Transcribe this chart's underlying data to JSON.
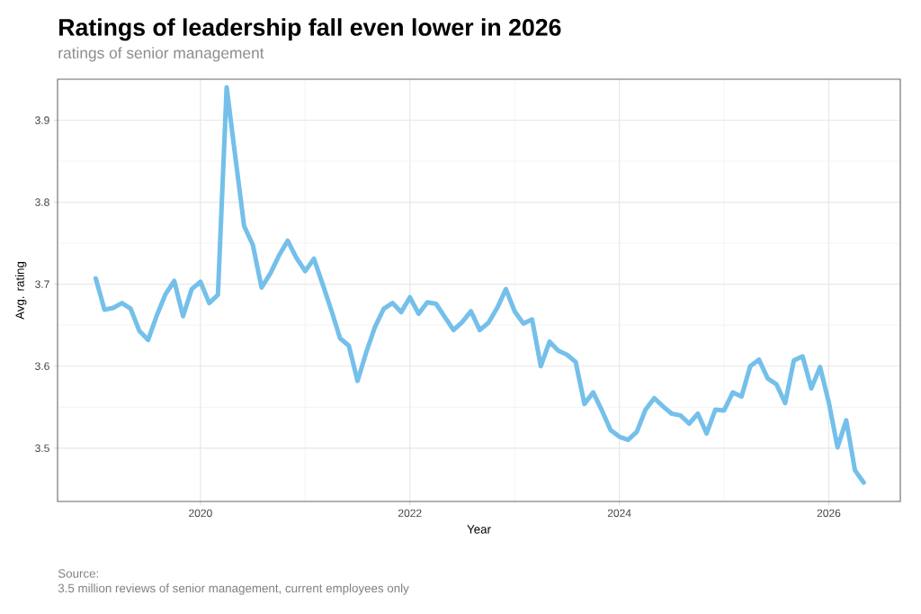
{
  "chart_data": {
    "type": "line",
    "title": "Ratings of leadership fall even lower in 2026",
    "subtitle": "ratings of senior management",
    "xlabel": "Year",
    "ylabel": "Avg. rating",
    "x": [
      "2019-01",
      "2019-02",
      "2019-03",
      "2019-04",
      "2019-05",
      "2019-06",
      "2019-07",
      "2019-08",
      "2019-09",
      "2019-10",
      "2019-11",
      "2019-12",
      "2020-01",
      "2020-02",
      "2020-03",
      "2020-04",
      "2020-05",
      "2020-06",
      "2020-07",
      "2020-08",
      "2020-09",
      "2020-10",
      "2020-11",
      "2020-12",
      "2021-01",
      "2021-02",
      "2021-03",
      "2021-04",
      "2021-05",
      "2021-06",
      "2021-07",
      "2021-08",
      "2021-09",
      "2021-10",
      "2021-11",
      "2021-12",
      "2022-01",
      "2022-02",
      "2022-03",
      "2022-04",
      "2022-05",
      "2022-06",
      "2022-07",
      "2022-08",
      "2022-09",
      "2022-10",
      "2022-11",
      "2022-12",
      "2023-01",
      "2023-02",
      "2023-03",
      "2023-04",
      "2023-05",
      "2023-06",
      "2023-07",
      "2023-08",
      "2023-09",
      "2023-10",
      "2023-11",
      "2023-12",
      "2024-01",
      "2024-02",
      "2024-03",
      "2024-04",
      "2024-05",
      "2024-06",
      "2024-07",
      "2024-08",
      "2024-09",
      "2024-10",
      "2024-11",
      "2024-12",
      "2025-01",
      "2025-02",
      "2025-03",
      "2025-04",
      "2025-05",
      "2025-06",
      "2025-07",
      "2025-08",
      "2025-09",
      "2025-10",
      "2025-11",
      "2025-12",
      "2026-01",
      "2026-02",
      "2026-03",
      "2026-04",
      "2026-05"
    ],
    "series": [
      {
        "color": "#74c0ea",
        "values": [
          3.707,
          3.669,
          3.671,
          3.677,
          3.67,
          3.643,
          3.632,
          3.662,
          3.688,
          3.704,
          3.661,
          3.694,
          3.703,
          3.677,
          3.687,
          3.94,
          3.855,
          3.771,
          3.748,
          3.696,
          3.713,
          3.735,
          3.753,
          3.732,
          3.716,
          3.731,
          3.7,
          3.668,
          3.634,
          3.625,
          3.582,
          3.617,
          3.648,
          3.67,
          3.677,
          3.666,
          3.684,
          3.664,
          3.678,
          3.676,
          3.66,
          3.644,
          3.654,
          3.667,
          3.644,
          3.653,
          3.671,
          3.694,
          3.667,
          3.652,
          3.657,
          3.6,
          3.63,
          3.619,
          3.614,
          3.605,
          3.554,
          3.568,
          3.546,
          3.522,
          3.514,
          3.51,
          3.52,
          3.547,
          3.561,
          3.551,
          3.542,
          3.54,
          3.53,
          3.542,
          3.518,
          3.547,
          3.546,
          3.568,
          3.563,
          3.6,
          3.608,
          3.585,
          3.578,
          3.555,
          3.607,
          3.612,
          3.573,
          3.599,
          3.556,
          3.501,
          3.534,
          3.473,
          3.458
        ]
      }
    ],
    "xlim": [
      "2018-08-20",
      "2026-09-07"
    ],
    "xticks": [
      "2020",
      "2022",
      "2024",
      "2026"
    ],
    "ylim": [
      3.435,
      3.95
    ],
    "yticks": [
      3.5,
      3.6,
      3.7,
      3.8,
      3.9
    ],
    "grid": true,
    "marker": "none",
    "line_style": "solid",
    "annotations": [
      "Source:",
      "3.5 million reviews of senior management, current employees only"
    ]
  }
}
